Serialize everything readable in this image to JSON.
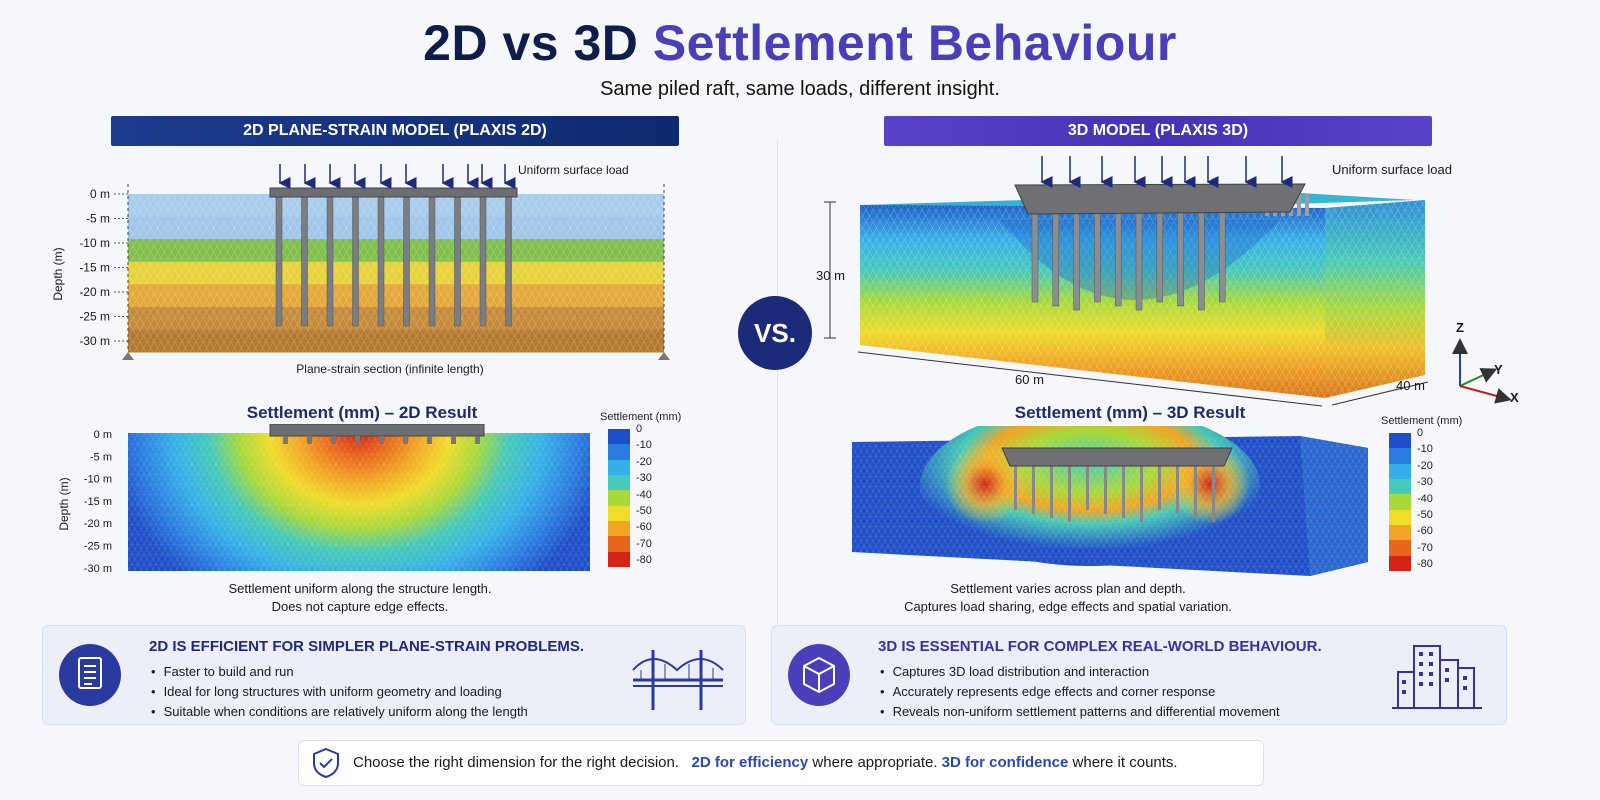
{
  "header": {
    "title_part1": "2D vs 3D",
    "title_part2": "Settlement Behaviour",
    "subtitle": "Same piled raft, same loads, different insight."
  },
  "left": {
    "banner": "2D PLANE-STRAIN MODEL (PLAXIS 2D)",
    "load_label": "Uniform surface load",
    "depth_ticks": [
      "0 m",
      "-5 m",
      "-10 m",
      "-15 m",
      "-20 m",
      "-25 m",
      "-30 m"
    ],
    "depth_axis": "Depth (m)",
    "section_caption": "Plane-strain section (infinite length)",
    "result_title": "Settlement (mm) – 2D Result",
    "result_depth_ticks": [
      "0 m",
      "-5 m",
      "-10 m",
      "-15 m",
      "-20 m",
      "-25 m",
      "-30 m"
    ],
    "result_caption_line1": "Settlement uniform along the structure length.",
    "result_caption_line2": "Does not capture edge effects."
  },
  "vs_label": "VS.",
  "right": {
    "banner": "3D MODEL (PLAXIS 3D)",
    "load_label": "Uniform surface load",
    "dim_depth": "30 m",
    "dim_length": "60 m",
    "dim_width": "40 m",
    "axes": {
      "z": "Z",
      "y": "Y",
      "x": "X"
    },
    "result_title": "Settlement (mm) – 3D Result",
    "result_caption_line1": "Settlement varies across plan and depth.",
    "result_caption_line2": "Captures load sharing, edge effects and spatial variation."
  },
  "colorbar": {
    "title": "Settlement (mm)",
    "ticks": [
      "0",
      "-10",
      "-20",
      "-30",
      "-40",
      "-50",
      "-60",
      "-70",
      "-80"
    ],
    "colors": [
      "#1f4fc8",
      "#2a7de0",
      "#35b0e8",
      "#46c9b8",
      "#a8d93a",
      "#f0dc2a",
      "#f2a524",
      "#e8661c",
      "#d42418"
    ]
  },
  "soil_colors": [
    "#a8ccec",
    "#9fc6ea",
    "#7fbf4a",
    "#e8d23a",
    "#e4a83a",
    "#c68a3a",
    "#b5792e"
  ],
  "panel_2d": {
    "title": "2D IS EFFICIENT FOR SIMPLER PLANE-STRAIN PROBLEMS.",
    "items": [
      "Faster to build and run",
      "Ideal for long structures with uniform geometry and loading",
      "Suitable when conditions are relatively uniform along the length"
    ]
  },
  "panel_3d": {
    "title": "3D IS ESSENTIAL FOR COMPLEX REAL-WORLD BEHAVIOUR.",
    "items": [
      "Captures 3D load distribution and interaction",
      "Accurately represents edge effects and corner response",
      "Reveals non-uniform settlement patterns and differential movement"
    ]
  },
  "footer": {
    "part1": "Choose the right dimension for the right decision.",
    "hl1": "2D for efficiency",
    "part2": "where appropriate.",
    "hl2": "3D for confidence",
    "part3": "where it counts."
  }
}
